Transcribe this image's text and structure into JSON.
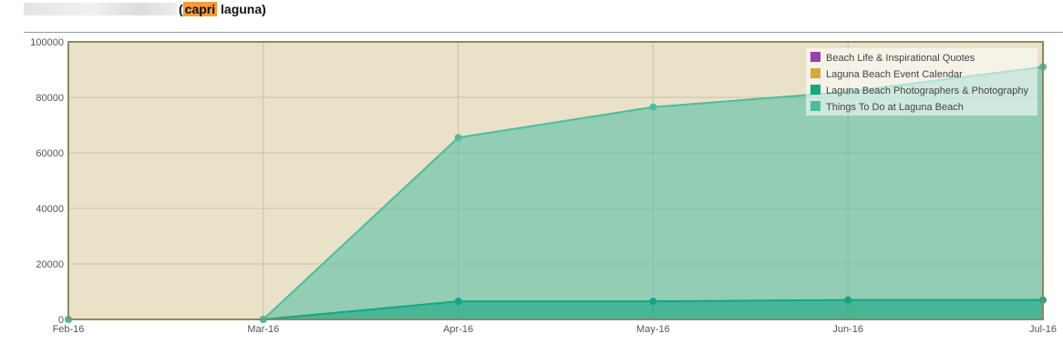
{
  "header": {
    "open_paren": "(",
    "highlight": "capri",
    "rest": " laguna)"
  },
  "chart_data": {
    "type": "area",
    "categories": [
      "Feb-16",
      "Mar-16",
      "Apr-16",
      "May-16",
      "Jun-16",
      "Jul-16"
    ],
    "ylim": [
      0,
      100000
    ],
    "yticks": [
      0,
      20000,
      40000,
      60000,
      80000,
      100000
    ],
    "grid": true,
    "legend_position": "top-right",
    "stacked": true,
    "series": [
      {
        "name": "Beach Life & Inspirational Quotes",
        "color": "#9b3fb1",
        "values": [
          0,
          0,
          0,
          0,
          0,
          0
        ]
      },
      {
        "name": "Laguna Beach Event Calendar",
        "color": "#d8a93a",
        "values": [
          0,
          0,
          0,
          0,
          0,
          0
        ]
      },
      {
        "name": "Laguna Beach Photographers & Photography",
        "color": "#12a783",
        "values": [
          0,
          0,
          6500,
          6500,
          7000,
          7000
        ]
      },
      {
        "name": "Things To Do at Laguna Beach",
        "color": "#4cbca1",
        "values": [
          0,
          0,
          59000,
          70000,
          75000,
          84000
        ]
      }
    ],
    "colors": {
      "plot_bg": "#e9e2c9",
      "frame": "#8a8a5c"
    }
  }
}
